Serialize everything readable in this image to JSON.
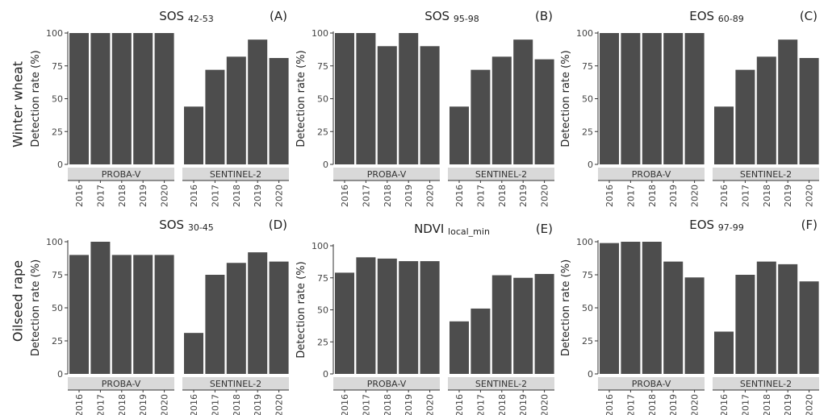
{
  "row_labels": [
    "Winter wheat",
    "Oilseed rape"
  ],
  "colors": {
    "bar": "#4d4d4d",
    "strip": "#d9d9d9",
    "axis": "#333333",
    "text": "#222222"
  },
  "chart_data": [
    {
      "type": "bar",
      "panel": "(A)",
      "title": "SOS",
      "title_sub": "42-53",
      "ylabel": "Detection rate (%)",
      "ylim": [
        0,
        100
      ],
      "yticks": [
        0,
        25,
        50,
        75,
        100
      ],
      "grid": false,
      "groups": [
        {
          "name": "PROBA-V",
          "categories": [
            "2016",
            "2017",
            "2018",
            "2019",
            "2020"
          ],
          "values": [
            100,
            100,
            100,
            100,
            100
          ]
        },
        {
          "name": "SENTINEL-2",
          "categories": [
            "2016",
            "2017",
            "2018",
            "2019",
            "2020"
          ],
          "values": [
            44,
            72,
            82,
            95,
            81
          ]
        }
      ]
    },
    {
      "type": "bar",
      "panel": "(B)",
      "title": "SOS",
      "title_sub": "95-98",
      "ylabel": "Detection rate (%)",
      "ylim": [
        0,
        100
      ],
      "yticks": [
        0,
        25,
        50,
        75,
        100
      ],
      "grid": false,
      "groups": [
        {
          "name": "PROBA-V",
          "categories": [
            "2016",
            "2017",
            "2018",
            "2019",
            "2020"
          ],
          "values": [
            100,
            100,
            90,
            100,
            90
          ]
        },
        {
          "name": "SENTINEL-2",
          "categories": [
            "2016",
            "2017",
            "2018",
            "2019",
            "2020"
          ],
          "values": [
            44,
            72,
            82,
            95,
            80
          ]
        }
      ]
    },
    {
      "type": "bar",
      "panel": "(C)",
      "title": "EOS",
      "title_sub": "60-89",
      "ylabel": "Detection rate (%)",
      "ylim": [
        0,
        100
      ],
      "yticks": [
        0,
        25,
        50,
        75,
        100
      ],
      "grid": false,
      "groups": [
        {
          "name": "PROBA-V",
          "categories": [
            "2016",
            "2017",
            "2018",
            "2019",
            "2020"
          ],
          "values": [
            100,
            100,
            100,
            100,
            100
          ]
        },
        {
          "name": "SENTINEL-2",
          "categories": [
            "2016",
            "2017",
            "2018",
            "2019",
            "2020"
          ],
          "values": [
            44,
            72,
            82,
            95,
            81
          ]
        }
      ]
    },
    {
      "type": "bar",
      "panel": "(D)",
      "title": "SOS",
      "title_sub": "30-45",
      "ylabel": "Detection rate (%)",
      "ylim": [
        0,
        100
      ],
      "yticks": [
        0,
        25,
        50,
        75,
        100
      ],
      "grid": false,
      "groups": [
        {
          "name": "PROBA-V",
          "categories": [
            "2016",
            "2017",
            "2018",
            "2019",
            "2020"
          ],
          "values": [
            90,
            100,
            90,
            90,
            90
          ]
        },
        {
          "name": "SENTINEL-2",
          "categories": [
            "2016",
            "2017",
            "2018",
            "2019",
            "2020"
          ],
          "values": [
            31,
            75,
            84,
            92,
            85
          ]
        }
      ]
    },
    {
      "type": "bar",
      "panel": "(E)",
      "title": "NDVI",
      "title_sub": "local_min",
      "ylabel": "Detection rate (%)",
      "ylim": [
        0,
        100
      ],
      "yticks": [
        0,
        25,
        50,
        75,
        100
      ],
      "grid": false,
      "groups": [
        {
          "name": "PROBA-V",
          "categories": [
            "2016",
            "2017",
            "2018",
            "2019",
            "2020"
          ],
          "values": [
            79,
            91,
            90,
            88,
            88
          ]
        },
        {
          "name": "SENTINEL-2",
          "categories": [
            "2016",
            "2017",
            "2018",
            "2019",
            "2020"
          ],
          "values": [
            41,
            51,
            77,
            75,
            78
          ]
        }
      ]
    },
    {
      "type": "bar",
      "panel": "(F)",
      "title": "EOS",
      "title_sub": "97-99",
      "ylabel": "Detection rate (%)",
      "ylim": [
        0,
        100
      ],
      "yticks": [
        0,
        25,
        50,
        75,
        100
      ],
      "grid": false,
      "groups": [
        {
          "name": "PROBA-V",
          "categories": [
            "2016",
            "2017",
            "2018",
            "2019",
            "2020"
          ],
          "values": [
            99,
            100,
            100,
            85,
            73
          ]
        },
        {
          "name": "SENTINEL-2",
          "categories": [
            "2016",
            "2017",
            "2018",
            "2019",
            "2020"
          ],
          "values": [
            32,
            75,
            85,
            83,
            70
          ]
        }
      ]
    }
  ]
}
